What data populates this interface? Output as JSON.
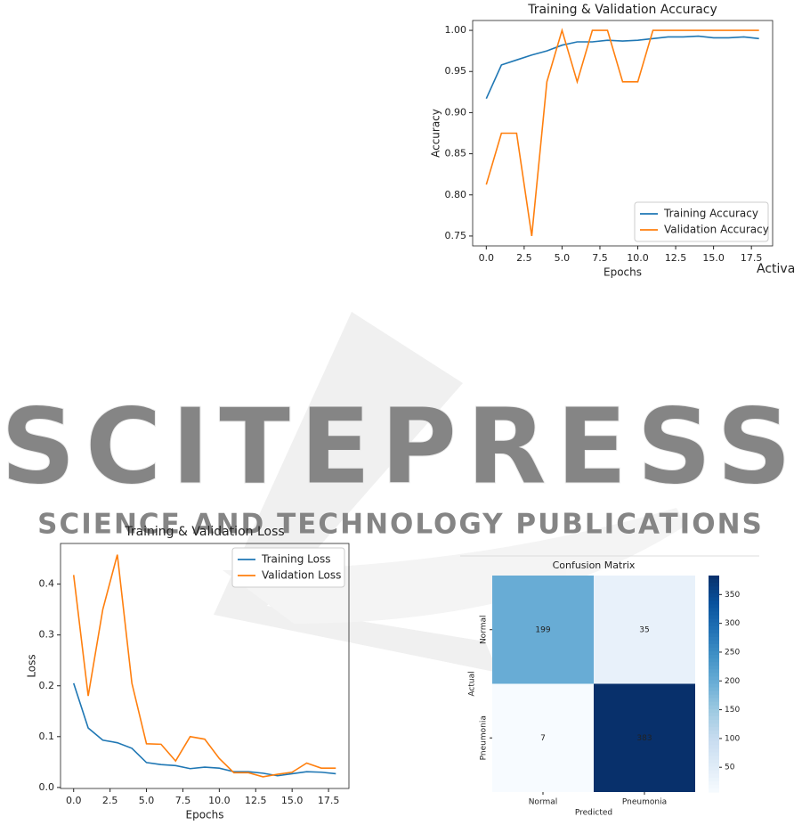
{
  "chart_data": [
    {
      "type": "line",
      "title": "Training & Validation Accuracy",
      "x_label": "Epochs",
      "y_label": "Accuracy",
      "x": [
        0,
        1,
        2,
        3,
        4,
        5,
        6,
        7,
        8,
        9,
        10,
        11,
        12,
        13,
        14,
        15,
        16,
        17,
        18
      ],
      "series": [
        {
          "name": "Training Accuracy",
          "color": "#1f77b4",
          "values": [
            0.917,
            0.958,
            0.964,
            0.97,
            0.975,
            0.982,
            0.986,
            0.986,
            0.988,
            0.987,
            0.988,
            0.99,
            0.992,
            0.992,
            0.993,
            0.991,
            0.991,
            0.992,
            0.99
          ]
        },
        {
          "name": "Validation Accuracy",
          "color": "#ff7f0e",
          "values": [
            0.8125,
            0.875,
            0.875,
            0.75,
            0.9375,
            1.0,
            0.9375,
            1.0,
            1.0,
            0.9375,
            0.9375,
            1.0,
            1.0,
            1.0,
            1.0,
            1.0,
            1.0,
            1.0,
            1.0
          ]
        }
      ],
      "xlim": [
        -0.9,
        18.9
      ],
      "ylim": [
        0.738,
        1.012
      ],
      "xticks": [
        {
          "value": 0,
          "label": "0.0"
        },
        2.5,
        {
          "value": 5,
          "label": "5.0"
        },
        7.5,
        {
          "value": 10,
          "label": "10.0"
        },
        12.5,
        {
          "value": 15,
          "label": "15.0"
        },
        17.5
      ],
      "yticks": [
        0.75,
        {
          "value": 0.8,
          "label": "0.80"
        },
        0.85,
        {
          "value": 0.9,
          "label": "0.90"
        },
        0.95,
        {
          "value": 1,
          "label": "1.00"
        }
      ],
      "legend": "lower right",
      "grid": false
    },
    {
      "type": "line",
      "title": "Training & Validation Loss",
      "x_label": "Epochs",
      "y_label": "Loss",
      "x": [
        0,
        1,
        2,
        3,
        4,
        5,
        6,
        7,
        8,
        9,
        10,
        11,
        12,
        13,
        14,
        15,
        16,
        17,
        18
      ],
      "series": [
        {
          "name": "Training Loss",
          "color": "#1f77b4",
          "values": [
            0.205,
            0.117,
            0.093,
            0.088,
            0.077,
            0.049,
            0.045,
            0.043,
            0.037,
            0.04,
            0.038,
            0.031,
            0.031,
            0.028,
            0.023,
            0.027,
            0.031,
            0.03,
            0.027
          ]
        },
        {
          "name": "Validation Loss",
          "color": "#ff7f0e",
          "values": [
            0.418,
            0.18,
            0.35,
            0.458,
            0.205,
            0.086,
            0.085,
            0.052,
            0.1,
            0.095,
            0.057,
            0.029,
            0.029,
            0.021,
            0.026,
            0.03,
            0.048,
            0.038,
            0.038
          ]
        }
      ],
      "xlim": [
        -0.9,
        18.9
      ],
      "ylim": [
        -0.002,
        0.48
      ],
      "xticks": [
        {
          "value": 0,
          "label": "0.0"
        },
        2.5,
        {
          "value": 5,
          "label": "5.0"
        },
        7.5,
        {
          "value": 10,
          "label": "10.0"
        },
        12.5,
        {
          "value": 15,
          "label": "15.0"
        },
        17.5
      ],
      "yticks": [
        {
          "value": 0,
          "label": "0.0"
        },
        0.1,
        0.2,
        0.3,
        0.4
      ],
      "legend": "upper right",
      "grid": false
    },
    {
      "type": "heatmap",
      "title": "Confusion Matrix",
      "x_label": "Predicted",
      "y_label": "Actual",
      "x_categories": [
        "Normal",
        "Pneumonia"
      ],
      "y_categories": [
        "Normal",
        "Pneumonia"
      ],
      "values": [
        [
          199,
          35
        ],
        [
          7,
          383
        ]
      ],
      "colormap": "Blues",
      "clim": [
        7,
        383
      ],
      "colorbar_ticks": [
        50,
        100,
        150,
        200,
        250,
        300,
        350
      ]
    }
  ],
  "watermark": {
    "title": "SCITEPRESS",
    "subtitle": "SCIENCE AND TECHNOLOGY PUBLICATIONS",
    "overlay": "Activa"
  }
}
